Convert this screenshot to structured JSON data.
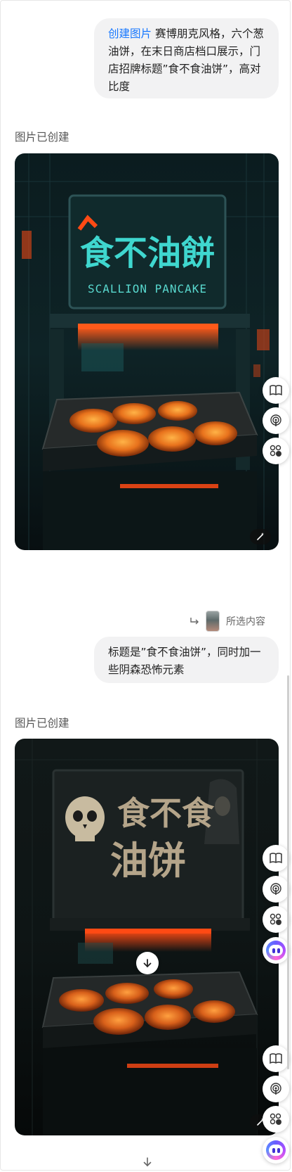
{
  "messages": {
    "first_prompt": {
      "command": "创建图片",
      "text": " 赛博朋克风格，六个葱油饼，在末日商店档口展示，门店招牌标题”食不食油饼”，高对比度"
    },
    "first_status": "图片已创建",
    "first_image": {
      "sign_title": "食不油餅",
      "sign_subtitle": "SCALLION PANCAKE"
    },
    "quote": {
      "label": "所选内容"
    },
    "second_prompt": {
      "text": "标题是”食不食油饼”，同时加一些阴森恐怖元素"
    },
    "second_status": "图片已创建",
    "second_image": {
      "sign_line1": "食不食",
      "sign_line2": "油饼"
    }
  },
  "icons": {
    "side_tools": [
      "book-icon",
      "podcast-icon",
      "apps-icon"
    ],
    "assistant": "assistant-avatar-icon",
    "edit": "magic-wand-icon",
    "scroll": "arrow-down-icon",
    "quote_arrow": "reply-arrow-icon"
  },
  "colors": {
    "accent": "#1677ff",
    "bubble": "#f2f2f3",
    "neon_teal": "#3fd7cf",
    "neon_orange": "#ff4a14"
  }
}
